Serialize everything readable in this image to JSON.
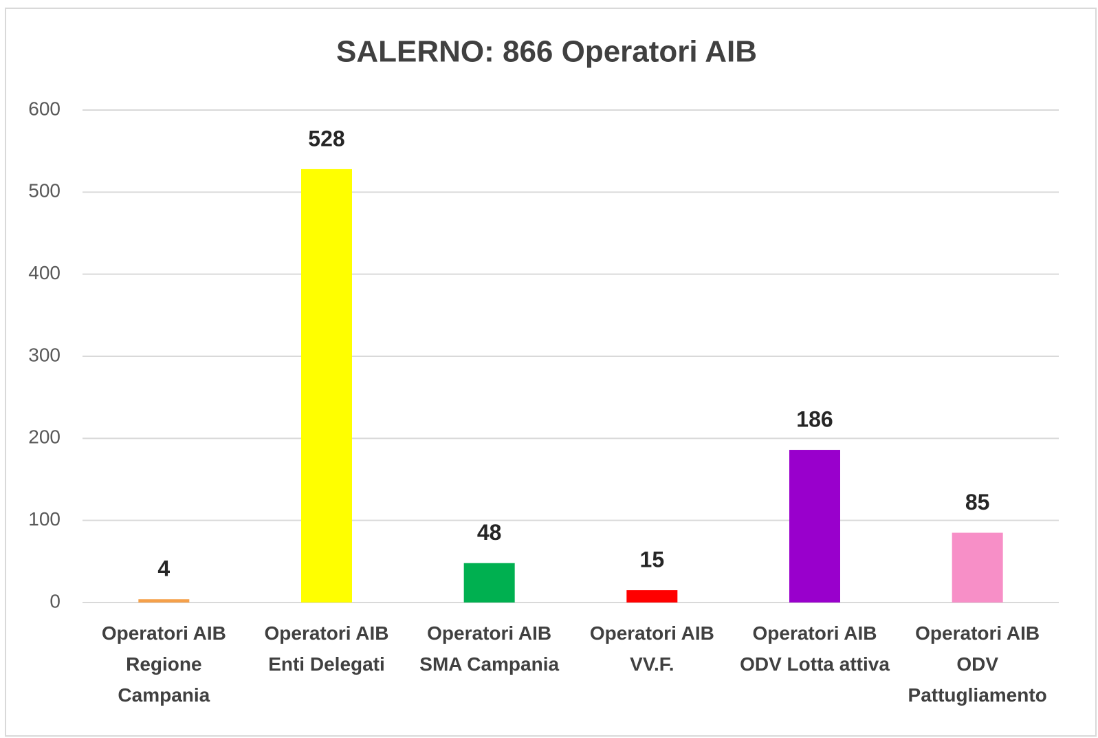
{
  "chart_data": {
    "type": "bar",
    "title": "SALERNO: 866 Operatori  AIB",
    "categories": [
      "Operatori AIB Regione Campania",
      "Operatori AIB Enti Delegati",
      "Operatori AIB SMA Campania",
      "Operatori AIB VV.F.",
      "Operatori AIB ODV Lotta attiva",
      "Operatori AIB ODV Pattugliamento"
    ],
    "values": [
      4,
      528,
      48,
      15,
      186,
      85
    ],
    "colors": [
      "#f5a04a",
      "#ffff00",
      "#00b050",
      "#ff0000",
      "#9900cc",
      "#f78fc7"
    ],
    "ylim": [
      0,
      600
    ],
    "yticks": [
      0,
      100,
      200,
      300,
      400,
      500,
      600
    ],
    "grid": true
  }
}
